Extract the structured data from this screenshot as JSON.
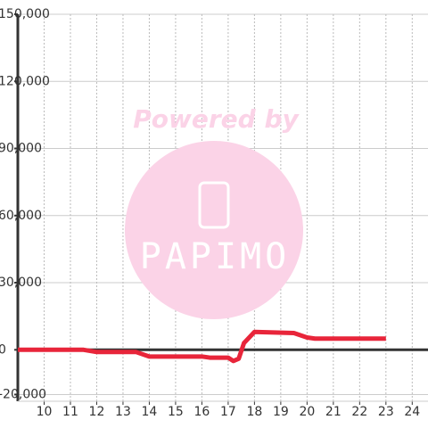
{
  "chart_data": {
    "type": "line",
    "watermark": {
      "caption": "Powered by",
      "brand": "PAPIMO"
    },
    "xlim": [
      9,
      24.6
    ],
    "ylim": [
      -23000,
      150000
    ],
    "xticks": [
      10,
      11,
      12,
      13,
      14,
      15,
      16,
      17,
      18,
      19,
      20,
      21,
      22,
      23,
      24
    ],
    "yticks": [
      {
        "value": -20000,
        "label": "-20,000"
      },
      0,
      {
        "value": 30000,
        "label": "30,000"
      },
      {
        "value": 60000,
        "label": "60,000"
      },
      {
        "value": 90000,
        "label": "90,000"
      },
      {
        "value": 120000,
        "label": "120,000"
      },
      {
        "value": 150000,
        "label": "150,000"
      }
    ],
    "grid": true,
    "x": [
      9,
      11.5,
      12,
      13.5,
      14,
      16,
      16.3,
      17,
      17.2,
      17.4,
      17.6,
      18,
      19.5,
      20,
      20.3,
      23
    ],
    "series": [
      {
        "color": "#e8253a",
        "values": [
          0,
          0,
          -1000,
          -1000,
          -3000,
          -3000,
          -3500,
          -3500,
          -5000,
          -4000,
          3000,
          8000,
          7500,
          5500,
          5000,
          5000
        ]
      }
    ]
  }
}
